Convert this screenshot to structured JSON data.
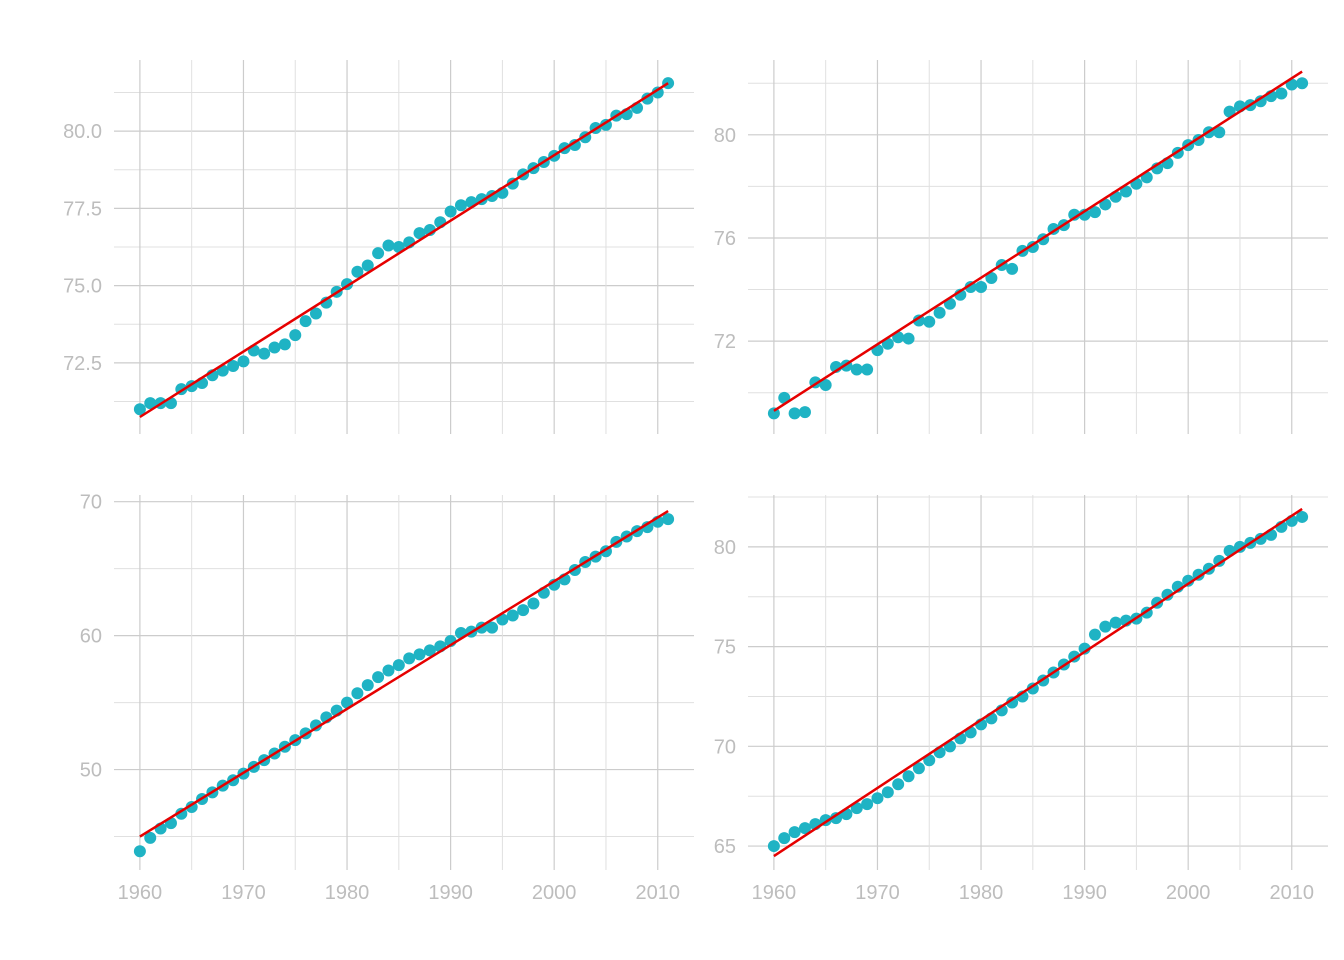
{
  "colors": {
    "points": "#1fb3c4",
    "fit_line": "#e60000",
    "grid": "#cccccc",
    "tick_text": "#bdbdbd"
  },
  "chart_data": [
    {
      "type": "scatter",
      "title": "",
      "xlabel": "",
      "ylabel": "",
      "grid": true,
      "legend": "none",
      "xlim": [
        1957.5,
        2013.5
      ],
      "ylim": [
        70.2,
        82.3
      ],
      "x_ticks": [
        "1960",
        "1970",
        "1980",
        "1990",
        "2000",
        "2010"
      ],
      "x_tick_values": [
        1960,
        1970,
        1980,
        1990,
        2000,
        2010
      ],
      "show_x_tick_labels": false,
      "y_ticks": [
        "72.5",
        "75.0",
        "77.5",
        "80.0"
      ],
      "y_tick_values": [
        72.5,
        75.0,
        77.5,
        80.0
      ],
      "y_minor": [
        71.25,
        73.75,
        76.25,
        78.75,
        81.25
      ],
      "trend_line": {
        "x": [
          1960,
          2011
        ],
        "y": [
          70.75,
          81.55
        ]
      },
      "series": [
        {
          "x": [
            1960,
            1961,
            1962,
            1963,
            1964,
            1965,
            1966,
            1967,
            1968,
            1969,
            1970,
            1971,
            1972,
            1973,
            1974,
            1975,
            1976,
            1977,
            1978,
            1979,
            1980,
            1981,
            1982,
            1983,
            1984,
            1985,
            1986,
            1987,
            1988,
            1989,
            1990,
            1991,
            1992,
            1993,
            1994,
            1995,
            1996,
            1997,
            1998,
            1999,
            2000,
            2001,
            2002,
            2003,
            2004,
            2005,
            2006,
            2007,
            2008,
            2009,
            2010,
            2011
          ],
          "y": [
            71.0,
            71.2,
            71.2,
            71.2,
            71.65,
            71.75,
            71.85,
            72.1,
            72.25,
            72.4,
            72.55,
            72.9,
            72.8,
            73.0,
            73.1,
            73.4,
            73.85,
            74.1,
            74.45,
            74.8,
            75.05,
            75.45,
            75.65,
            76.05,
            76.3,
            76.25,
            76.4,
            76.7,
            76.8,
            77.05,
            77.4,
            77.6,
            77.7,
            77.8,
            77.9,
            78.0,
            78.3,
            78.6,
            78.8,
            79.0,
            79.2,
            79.45,
            79.55,
            79.8,
            80.1,
            80.2,
            80.5,
            80.55,
            80.75,
            81.05,
            81.25,
            81.55
          ]
        }
      ]
    },
    {
      "type": "scatter",
      "title": "",
      "xlabel": "",
      "ylabel": "",
      "grid": true,
      "legend": "none",
      "xlim": [
        1957.5,
        2013.5
      ],
      "ylim": [
        68.4,
        82.9
      ],
      "x_ticks": [
        "1960",
        "1970",
        "1980",
        "1990",
        "2000",
        "2010"
      ],
      "x_tick_values": [
        1960,
        1970,
        1980,
        1990,
        2000,
        2010
      ],
      "show_x_tick_labels": false,
      "y_ticks": [
        "72",
        "76",
        "80"
      ],
      "y_tick_values": [
        72,
        76,
        80
      ],
      "y_minor": [
        70,
        74,
        78,
        82
      ],
      "trend_line": {
        "x": [
          1960,
          2011
        ],
        "y": [
          69.3,
          82.45
        ]
      },
      "series": [
        {
          "x": [
            1960,
            1961,
            1962,
            1963,
            1964,
            1965,
            1966,
            1967,
            1968,
            1969,
            1970,
            1971,
            1972,
            1973,
            1974,
            1975,
            1976,
            1977,
            1978,
            1979,
            1980,
            1981,
            1982,
            1983,
            1984,
            1985,
            1986,
            1987,
            1988,
            1989,
            1990,
            1991,
            1992,
            1993,
            1994,
            1995,
            1996,
            1997,
            1998,
            1999,
            2000,
            2001,
            2002,
            2003,
            2004,
            2005,
            2006,
            2007,
            2008,
            2009,
            2010,
            2011
          ],
          "y": [
            69.2,
            69.8,
            69.2,
            69.25,
            70.4,
            70.3,
            71.0,
            71.05,
            70.9,
            70.9,
            71.65,
            71.9,
            72.15,
            72.1,
            72.8,
            72.75,
            73.1,
            73.45,
            73.8,
            74.1,
            74.1,
            74.45,
            74.95,
            74.8,
            75.5,
            75.65,
            75.95,
            76.35,
            76.5,
            76.9,
            76.9,
            77.0,
            77.3,
            77.6,
            77.8,
            78.1,
            78.35,
            78.7,
            78.9,
            79.3,
            79.6,
            79.8,
            80.1,
            80.1,
            80.9,
            81.1,
            81.15,
            81.3,
            81.5,
            81.6,
            81.95,
            82.0
          ]
        }
      ]
    },
    {
      "type": "scatter",
      "title": "",
      "xlabel": "",
      "ylabel": "",
      "grid": true,
      "legend": "none",
      "xlim": [
        1957.5,
        2013.5
      ],
      "ylim": [
        42.5,
        70.5
      ],
      "x_ticks": [
        "1960",
        "1970",
        "1980",
        "1990",
        "2000",
        "2010"
      ],
      "x_tick_values": [
        1960,
        1970,
        1980,
        1990,
        2000,
        2010
      ],
      "show_x_tick_labels": true,
      "y_ticks": [
        "50",
        "60",
        "70"
      ],
      "y_tick_values": [
        50,
        60,
        70
      ],
      "y_minor": [
        45,
        55,
        65
      ],
      "trend_line": {
        "x": [
          1960,
          2011
        ],
        "y": [
          45.0,
          69.3
        ]
      },
      "series": [
        {
          "x": [
            1960,
            1961,
            1962,
            1963,
            1964,
            1965,
            1966,
            1967,
            1968,
            1969,
            1970,
            1971,
            1972,
            1973,
            1974,
            1975,
            1976,
            1977,
            1978,
            1979,
            1980,
            1981,
            1982,
            1983,
            1984,
            1985,
            1986,
            1987,
            1988,
            1989,
            1990,
            1991,
            1992,
            1993,
            1994,
            1995,
            1996,
            1997,
            1998,
            1999,
            2000,
            2001,
            2002,
            2003,
            2004,
            2005,
            2006,
            2007,
            2008,
            2009,
            2010,
            2011
          ],
          "y": [
            43.9,
            44.9,
            45.6,
            46.0,
            46.7,
            47.2,
            47.8,
            48.3,
            48.8,
            49.2,
            49.7,
            50.2,
            50.7,
            51.2,
            51.7,
            52.2,
            52.7,
            53.3,
            53.9,
            54.4,
            55.0,
            55.7,
            56.3,
            56.9,
            57.4,
            57.8,
            58.3,
            58.6,
            58.9,
            59.2,
            59.6,
            60.2,
            60.3,
            60.6,
            60.6,
            61.2,
            61.5,
            61.9,
            62.4,
            63.2,
            63.8,
            64.2,
            64.9,
            65.5,
            65.9,
            66.3,
            67.0,
            67.4,
            67.8,
            68.1,
            68.5,
            68.7
          ]
        }
      ]
    },
    {
      "type": "scatter",
      "title": "",
      "xlabel": "",
      "ylabel": "",
      "grid": true,
      "legend": "none",
      "xlim": [
        1957.5,
        2013.5
      ],
      "ylim": [
        63.8,
        82.6
      ],
      "x_ticks": [
        "1960",
        "1970",
        "1980",
        "1990",
        "2000",
        "2010"
      ],
      "x_tick_values": [
        1960,
        1970,
        1980,
        1990,
        2000,
        2010
      ],
      "show_x_tick_labels": true,
      "y_ticks": [
        "65",
        "70",
        "75",
        "80"
      ],
      "y_tick_values": [
        65,
        70,
        75,
        80
      ],
      "y_minor": [
        67.5,
        72.5,
        77.5,
        82.5
      ],
      "trend_line": {
        "x": [
          1960,
          2011
        ],
        "y": [
          64.5,
          81.9
        ]
      },
      "series": [
        {
          "x": [
            1960,
            1961,
            1962,
            1963,
            1964,
            1965,
            1966,
            1967,
            1968,
            1969,
            1970,
            1971,
            1972,
            1973,
            1974,
            1975,
            1976,
            1977,
            1978,
            1979,
            1980,
            1981,
            1982,
            1983,
            1984,
            1985,
            1986,
            1987,
            1988,
            1989,
            1990,
            1991,
            1992,
            1993,
            1994,
            1995,
            1996,
            1997,
            1998,
            1999,
            2000,
            2001,
            2002,
            2003,
            2004,
            2005,
            2006,
            2007,
            2008,
            2009,
            2010,
            2011
          ],
          "y": [
            65.0,
            65.4,
            65.7,
            65.9,
            66.1,
            66.3,
            66.4,
            66.6,
            66.9,
            67.1,
            67.4,
            67.7,
            68.1,
            68.5,
            68.9,
            69.3,
            69.7,
            70.0,
            70.4,
            70.7,
            71.1,
            71.4,
            71.8,
            72.2,
            72.5,
            72.9,
            73.3,
            73.7,
            74.1,
            74.5,
            74.9,
            75.6,
            76.0,
            76.2,
            76.3,
            76.4,
            76.7,
            77.2,
            77.6,
            78.0,
            78.3,
            78.6,
            78.9,
            79.3,
            79.8,
            80.0,
            80.2,
            80.4,
            80.6,
            81.0,
            81.3,
            81.5
          ]
        }
      ]
    }
  ]
}
